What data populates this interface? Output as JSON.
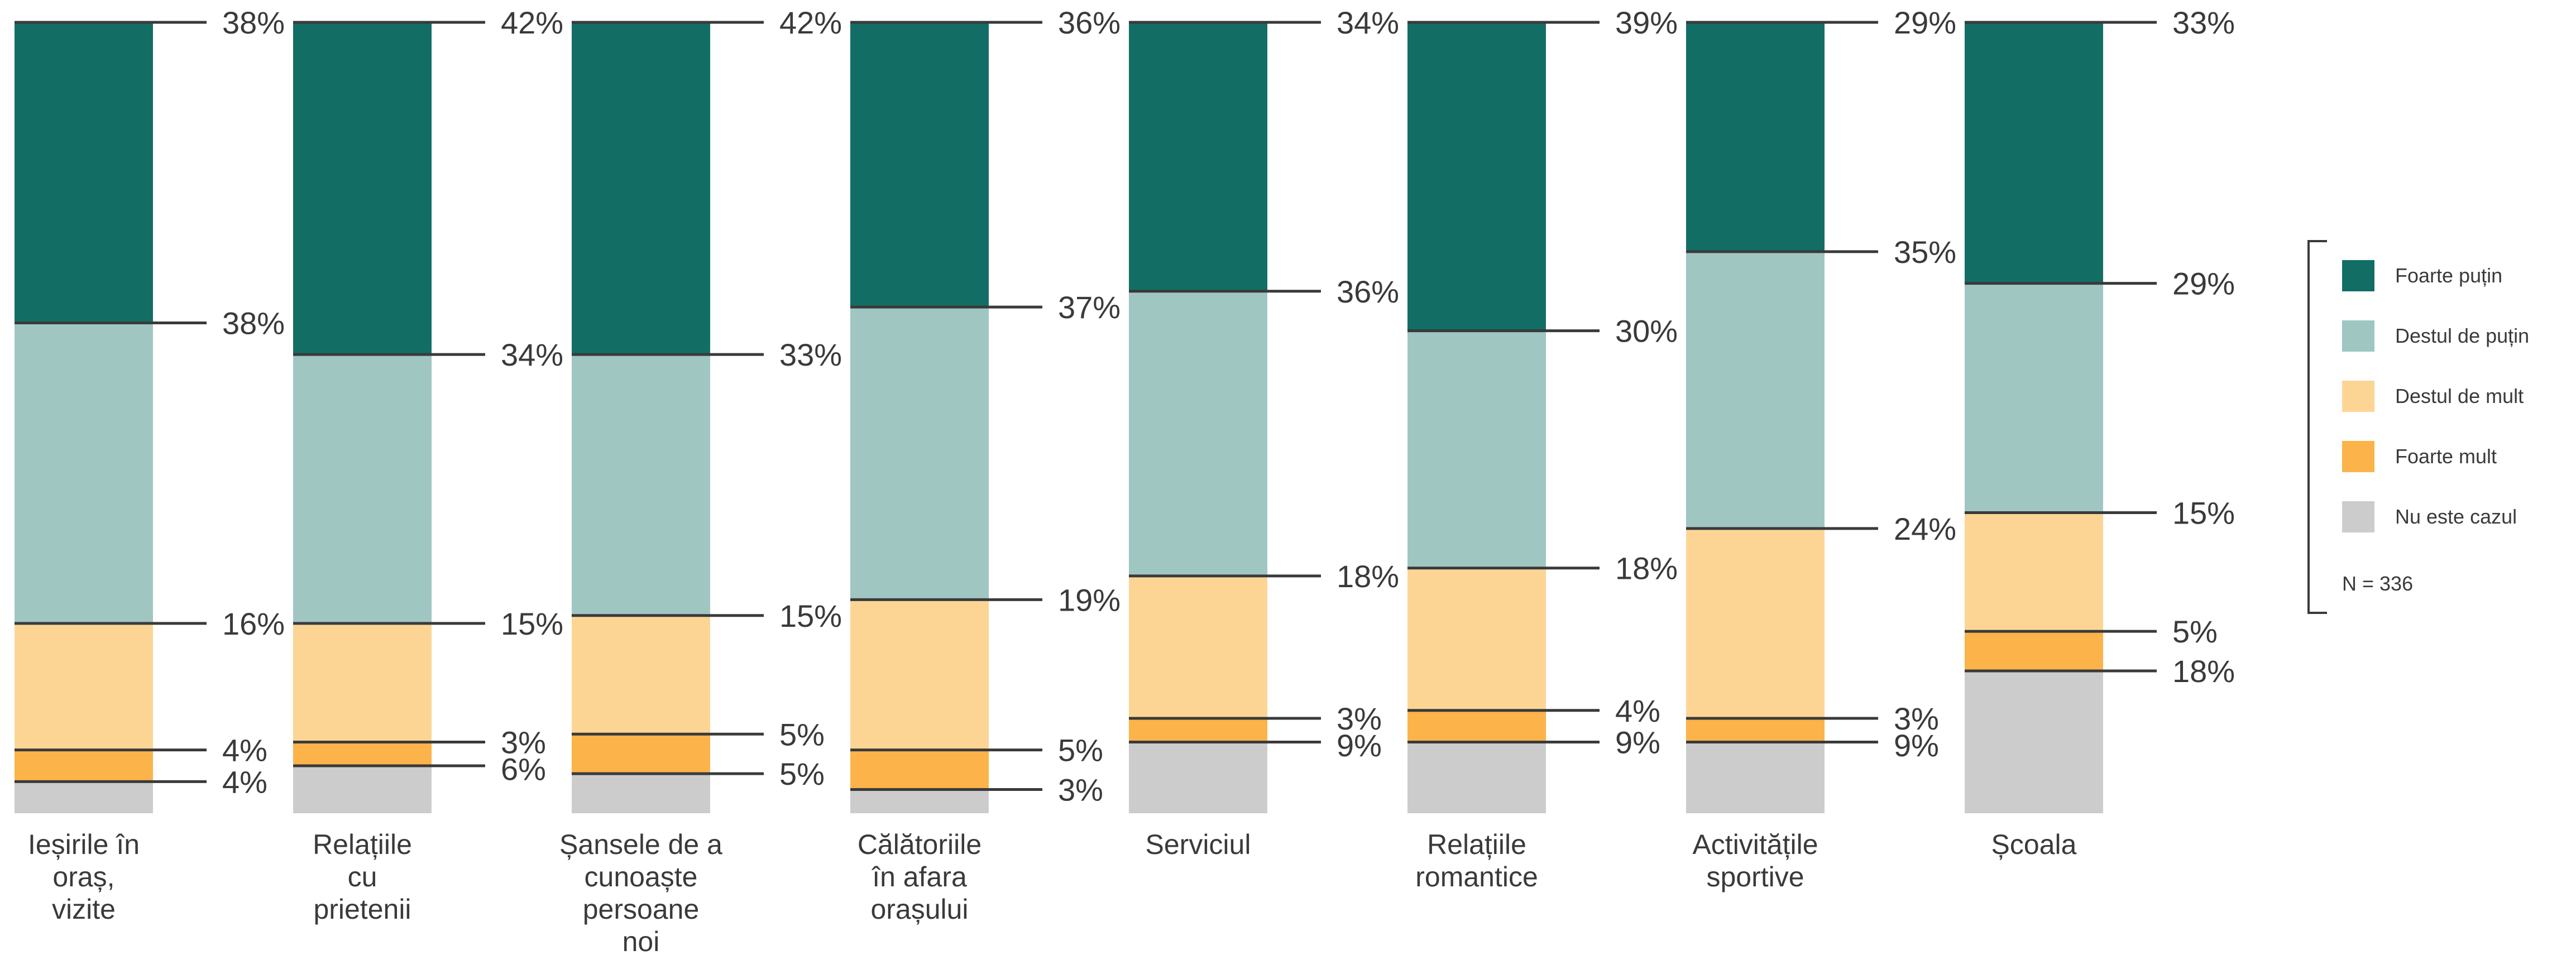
{
  "chart_data": {
    "type": "bar",
    "stacked": true,
    "orientation": "vertical",
    "unit": "%",
    "categories": [
      "Ieșirile în oraș, vizite",
      "Relațiile cu prietenii",
      "Șansele de a cunoaște persoane noi",
      "Călătoriile în afara orașului",
      "Serviciul",
      "Relațiile romantice",
      "Activitățile sportive",
      "Școala"
    ],
    "category_lines": [
      [
        "Ieșirile în",
        "oraș,",
        "vizite"
      ],
      [
        "Relațiile",
        "cu",
        "prietenii"
      ],
      [
        "Șansele de a",
        "cunoaște",
        "persoane",
        "noi"
      ],
      [
        "Călătoriile",
        "în afara",
        "orașului"
      ],
      [
        "Serviciul"
      ],
      [
        "Relațiile",
        "romantice"
      ],
      [
        "Activitățile",
        "sportive"
      ],
      [
        "Școala"
      ]
    ],
    "series": [
      {
        "name": "Foarte puțin",
        "color": "#126e65",
        "values": [
          38,
          42,
          42,
          36,
          34,
          39,
          29,
          33
        ]
      },
      {
        "name": "Destul de puțin",
        "color": "#a0c6c2",
        "values": [
          38,
          34,
          33,
          37,
          36,
          30,
          35,
          29
        ]
      },
      {
        "name": "Destul de mult",
        "color": "#fcd595",
        "values": [
          16,
          15,
          15,
          19,
          18,
          18,
          24,
          15
        ]
      },
      {
        "name": "Foarte mult",
        "color": "#fbb34a",
        "values": [
          4,
          3,
          5,
          5,
          3,
          4,
          3,
          5
        ]
      },
      {
        "name": "Nu este cazul",
        "color": "#cccccc",
        "values": [
          4,
          6,
          5,
          3,
          9,
          9,
          9,
          18
        ]
      }
    ],
    "note": "N = 336",
    "legend_position": "right",
    "grid": false
  }
}
